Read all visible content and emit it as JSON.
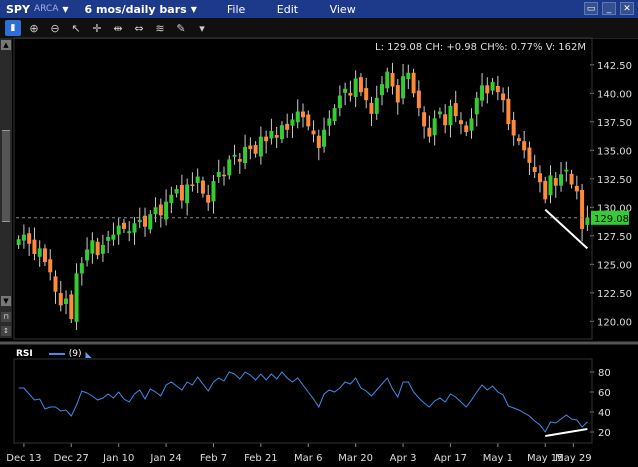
{
  "titlebar": {
    "symbol": "SPY",
    "exchange": "ARCA",
    "period": "6 mos/daily bars",
    "menu_file": "File",
    "menu_edit": "Edit",
    "menu_view": "View"
  },
  "info_line": "L: 129.08 CH: +0.98 CH%: 0.77% V: 162M",
  "last_price_tag": "129.08",
  "rsi": {
    "name": "RSI",
    "param": "(9)"
  },
  "colors": {
    "up": "#33cc33",
    "down": "#ff8a3a",
    "rsi": "#3d8de8",
    "trend": "#ffffff"
  },
  "chart_data": {
    "type": "candlestick",
    "price_axis_labels": [
      "142.50",
      "140.00",
      "137.50",
      "135.00",
      "132.50",
      "130.00",
      "127.50",
      "125.00",
      "122.50",
      "120.00"
    ],
    "price_axis_values": [
      142.5,
      140,
      137.5,
      135,
      132.5,
      130,
      127.5,
      125,
      122.5,
      120
    ],
    "price_range": [
      118.8,
      144.5
    ],
    "x_labels": [
      "Dec 13",
      "Dec 27",
      "Jan 10",
      "Jan 24",
      "Feb 7",
      "Feb 21",
      "Mar 6",
      "Mar 20",
      "Apr 3",
      "Apr 17",
      "May 1",
      "May 15",
      "May 29"
    ],
    "closes": [
      127.2,
      127.6,
      126.8,
      125.9,
      126.4,
      125.2,
      124.3,
      122.6,
      121.4,
      122.0,
      120.2,
      124.2,
      125.1,
      126.3,
      127.1,
      125.8,
      126.7,
      127.4,
      127.6,
      128.4,
      128.1,
      127.9,
      128.6,
      128.9,
      128.3,
      129.4,
      130.0,
      129.3,
      130.5,
      131.1,
      131.6,
      130.6,
      132.0,
      131.9,
      132.7,
      131.2,
      130.4,
      132.3,
      133.1,
      132.8,
      134.2,
      134.6,
      134.0,
      135.3,
      135.1,
      134.7,
      136.2,
      135.8,
      136.7,
      136.1,
      137.2,
      136.8,
      137.7,
      138.4,
      137.9,
      137.1,
      136.4,
      135.2,
      136.8,
      137.8,
      138.7,
      139.8,
      140.4,
      139.8,
      141.3,
      140.1,
      139.4,
      138.2,
      139.6,
      140.8,
      141.9,
      140.6,
      139.2,
      141.5,
      141.8,
      140.0,
      138.7,
      137.1,
      136.2,
      137.8,
      138.4,
      137.2,
      138.9,
      138.0,
      137.3,
      136.6,
      137.8,
      139.6,
      140.7,
      140.0,
      141.0,
      140.1,
      139.4,
      137.3,
      136.3,
      135.8,
      135.0,
      133.9,
      133.1,
      132.2,
      130.7,
      132.8,
      131.9,
      132.9,
      133.3,
      132.0,
      131.4,
      128.1,
      129.08
    ],
    "annotations": [
      {
        "type": "trendline",
        "pane": "price",
        "from": {
          "index": 100,
          "value": 129.8
        },
        "to": {
          "index": 108,
          "value": 126.4
        }
      },
      {
        "type": "trendline",
        "pane": "rsi",
        "from": {
          "index": 100,
          "value": 16
        },
        "to": {
          "index": 108,
          "value": 23
        }
      }
    ],
    "rsi_axis_labels": [
      "80",
      "60",
      "40",
      "20"
    ],
    "rsi_axis_values": [
      80,
      60,
      40,
      20
    ],
    "rsi_range": [
      12,
      90
    ],
    "rsi_series": {
      "name": "RSI (9)",
      "values": [
        64,
        64,
        58,
        52,
        53,
        43,
        45,
        45,
        41,
        42,
        36,
        47,
        61,
        59,
        56,
        52,
        54,
        58,
        54,
        60,
        53,
        50,
        58,
        62,
        53,
        63,
        60,
        56,
        67,
        70,
        66,
        62,
        70,
        67,
        75,
        68,
        61,
        70,
        74,
        71,
        80,
        78,
        73,
        80,
        77,
        72,
        78,
        72,
        78,
        73,
        80,
        74,
        70,
        74,
        67,
        60,
        53,
        45,
        58,
        62,
        60,
        64,
        70,
        68,
        74,
        64,
        61,
        56,
        62,
        68,
        74,
        63,
        55,
        70,
        70,
        60,
        54,
        49,
        45,
        51,
        54,
        50,
        58,
        55,
        50,
        45,
        52,
        60,
        67,
        62,
        66,
        60,
        57,
        46,
        44,
        42,
        39,
        36,
        31,
        27,
        20,
        30,
        29,
        33,
        37,
        33,
        32,
        25,
        30
      ]
    }
  }
}
